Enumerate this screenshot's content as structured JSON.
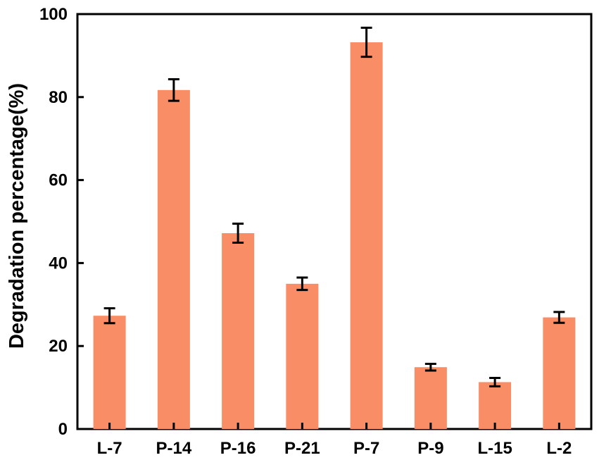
{
  "chart_data": {
    "type": "bar",
    "title": "",
    "xlabel": "",
    "ylabel": "Degradation percentage(%)",
    "categories": [
      "L-7",
      "P-14",
      "P-16",
      "P-21",
      "P-7",
      "P-9",
      "L-15",
      "L-2"
    ],
    "values": [
      27.3,
      81.7,
      47.2,
      35.0,
      93.2,
      14.9,
      11.3,
      26.9
    ],
    "errors": [
      1.8,
      2.6,
      2.3,
      1.5,
      3.5,
      0.8,
      1.0,
      1.3
    ],
    "ylim": [
      0,
      100
    ],
    "yticks": [
      0,
      20,
      40,
      60,
      80,
      100
    ],
    "grid": false,
    "legend": "none",
    "bar_color": "#F98D66",
    "error_color": "#000000"
  }
}
